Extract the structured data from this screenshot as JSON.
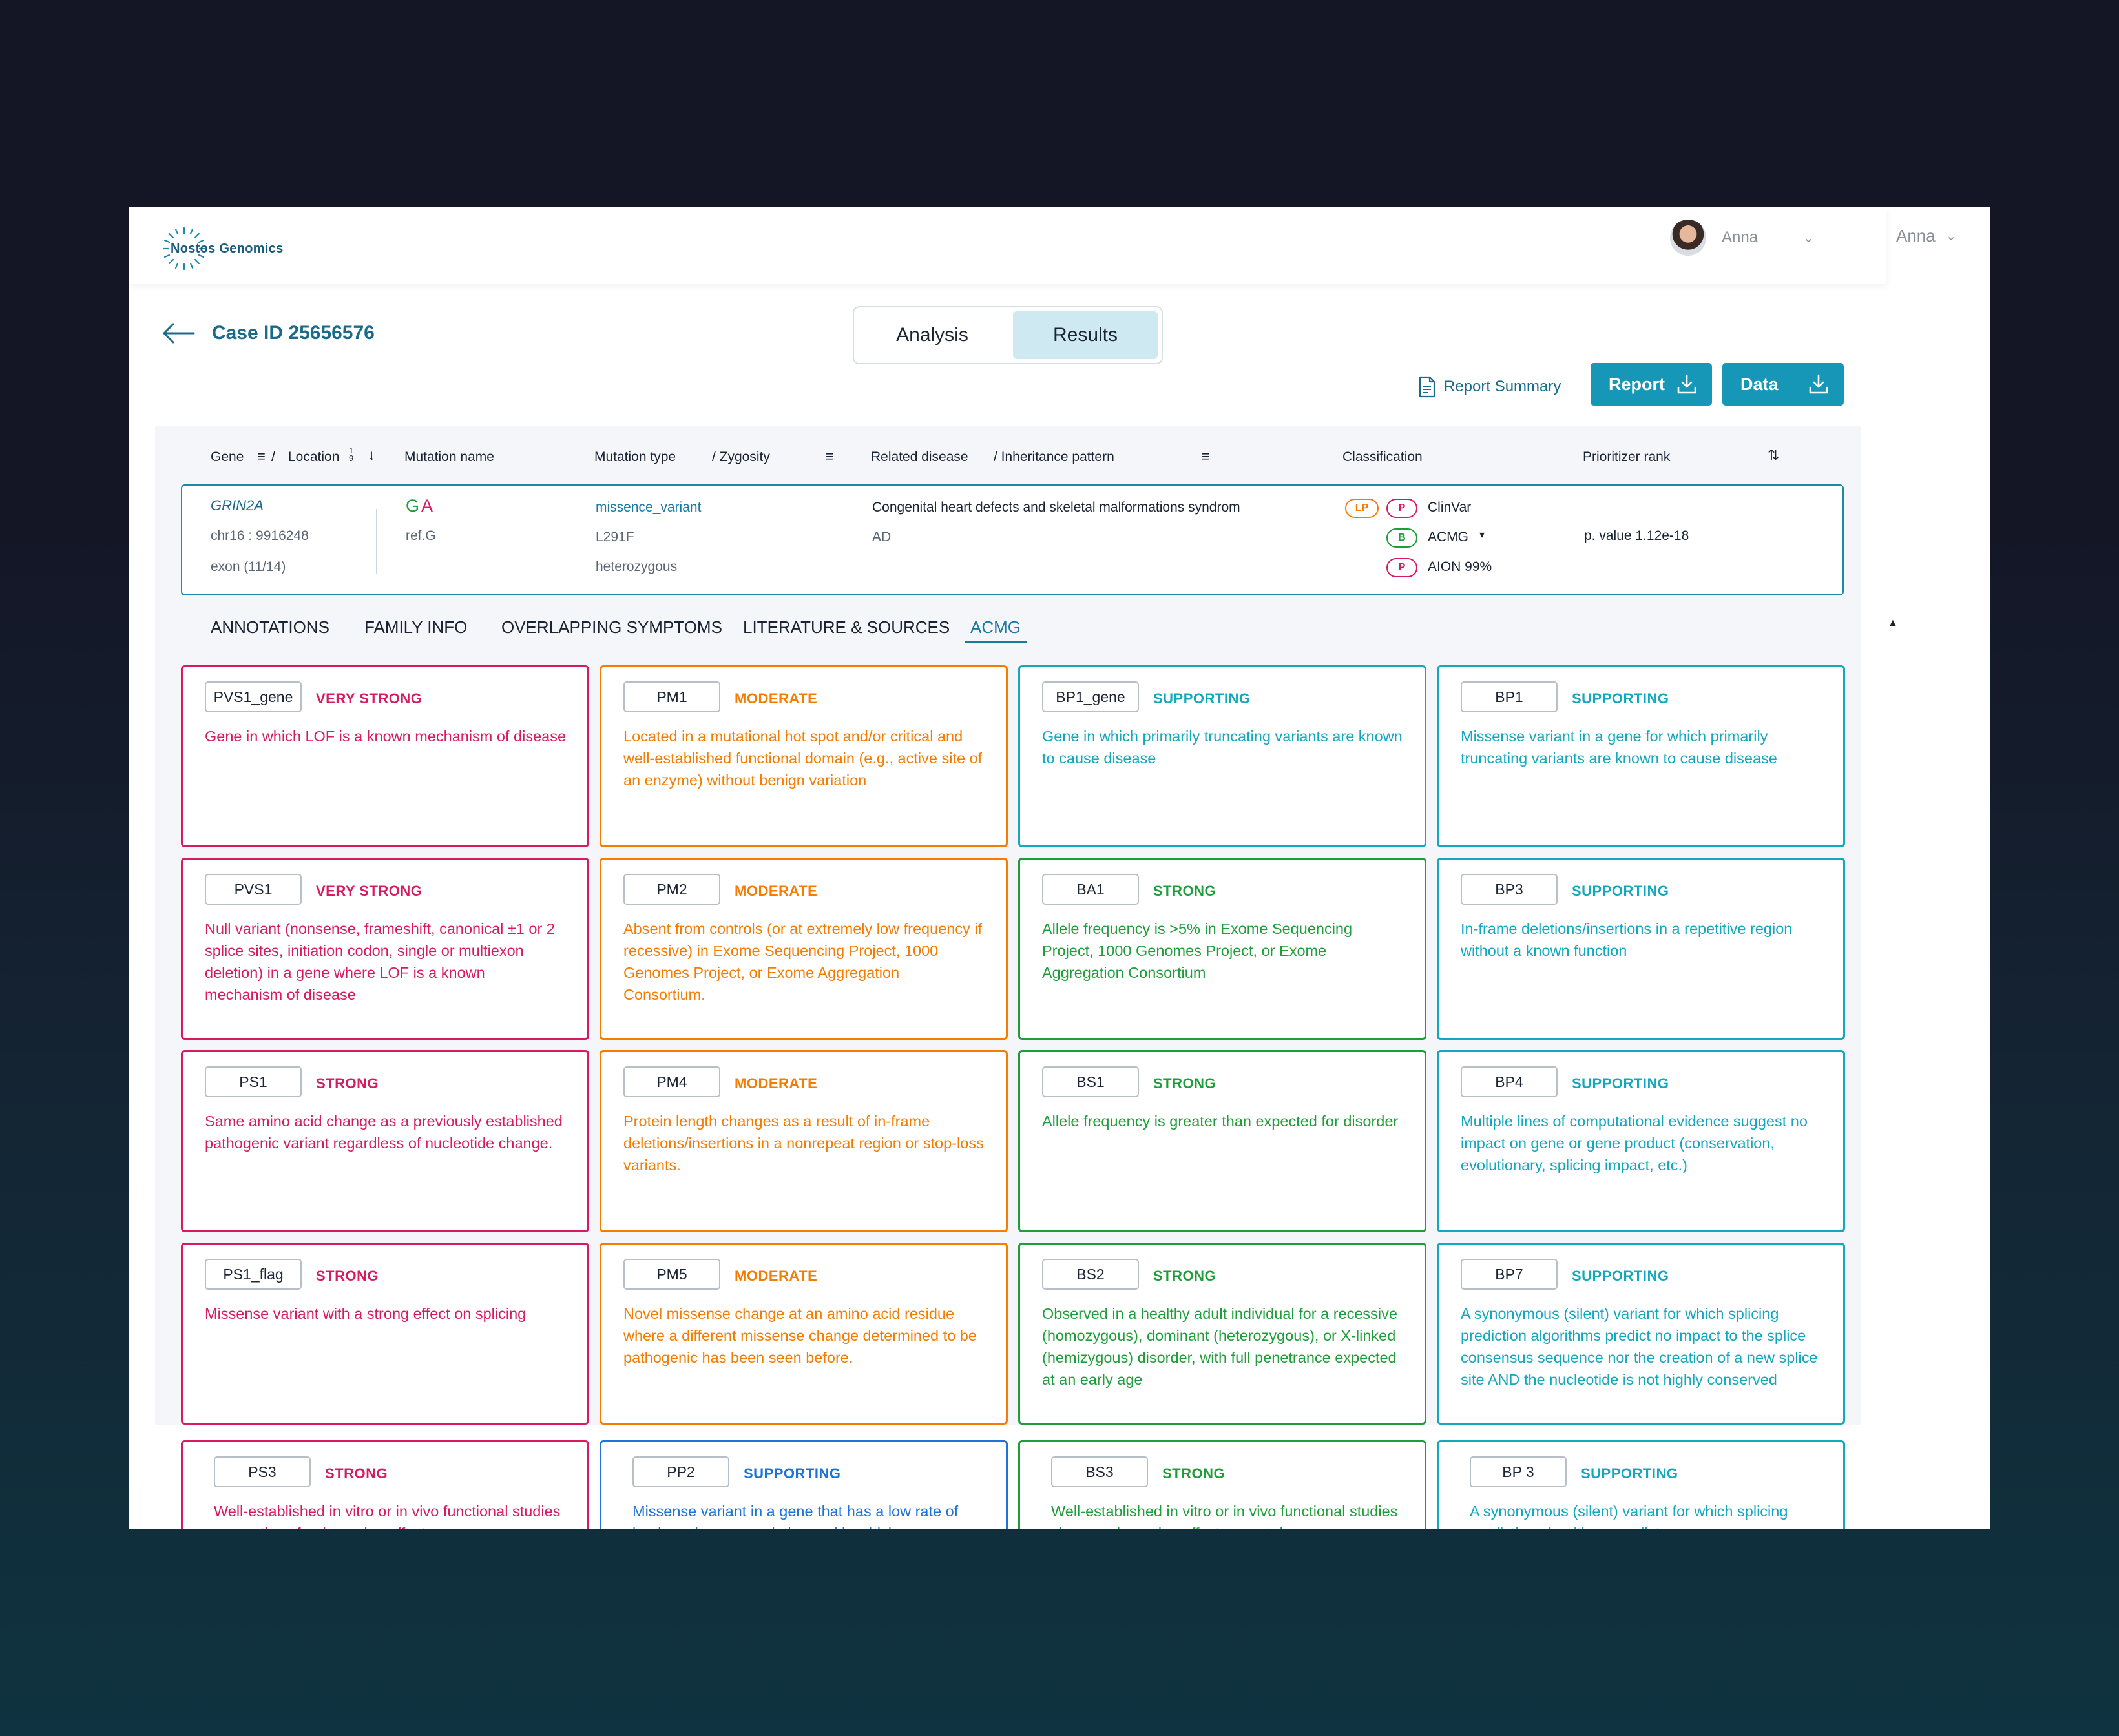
{
  "app": {
    "brand": "Nostos Genomics"
  },
  "user": {
    "name": "Anna",
    "name_secondary": "Anna"
  },
  "case": {
    "title": "Case ID 25656576"
  },
  "view_toggle": {
    "analysis": "Analysis",
    "results": "Results",
    "active": "Results"
  },
  "actions": {
    "report_summary": "Report Summary",
    "report": "Report",
    "data": "Data"
  },
  "table_headers": {
    "gene": "Gene",
    "location": "Location",
    "location_sort": "1 9",
    "mutation_name": "Mutation name",
    "mutation_type": "Mutation type",
    "zygosity": "/ Zygosity",
    "related_disease": "Related disease",
    "inheritance": "/ Inheritance pattern",
    "classification": "Classification",
    "prioritizer_rank": "Prioritizer rank",
    "slash": "/"
  },
  "variant": {
    "gene": "GRIN2A",
    "location": "chr16 : 9916248",
    "exon": "exon (11/14)",
    "ref_allele": "G",
    "alt_allele": "A",
    "ref_label": "ref.G",
    "mutation_type": "missence_variant",
    "protein_change": "L291F",
    "zygosity": "heterozygous",
    "disease": "Congenital heart defects and skeletal malformations syndrom",
    "inheritance": "AD",
    "classifications": [
      {
        "source": "ClinVar",
        "badges": [
          "LP",
          "P"
        ]
      },
      {
        "source": "ACMG",
        "badges": [
          "B"
        ],
        "dropdown": "▾"
      },
      {
        "source": "AION 99%",
        "badges": [
          "P"
        ]
      }
    ],
    "prioritizer": "p. value 1.12e-18"
  },
  "tabs": [
    "ANNOTATIONS",
    "FAMILY INFO",
    "OVERLAPPING SYMPTOMS",
    "LITERATURE & SOURCES",
    "ACMG"
  ],
  "active_tab": "ACMG",
  "colors": {
    "very_strong": "#d81b60",
    "moderate": "#f57c00",
    "strong_benign": "#1e9e3a",
    "supporting_benign": "#12a8bd",
    "supporting_path": "#1e73d8",
    "accent": "#1697b8"
  },
  "acmg_cards": [
    [
      {
        "code": "PVS1_gene",
        "level": "VERY STRONG",
        "desc": "Gene in which LOF is a known mechanism of disease"
      },
      {
        "code": "PM1",
        "level": "MODERATE",
        "desc": "Located in a mutational hot spot and/or critical and well-established functional domain (e.g., active site of an enzyme) without benign variation"
      },
      {
        "code": "BP1_gene",
        "level": "SUPPORTING",
        "desc": "Gene in which primarily truncating variants are known to cause disease"
      },
      {
        "code": "BP1",
        "level": "SUPPORTING",
        "desc": "Missense variant in a gene for which primarily truncating variants are known to cause disease"
      }
    ],
    [
      {
        "code": "PVS1",
        "level": "VERY STRONG",
        "desc": "Null variant (nonsense, frameshift, canonical ±1 or 2 splice sites, initiation codon, single or multiexon deletion) in a gene where LOF is a known mechanism of disease"
      },
      {
        "code": "PM2",
        "level": "MODERATE",
        "desc": "Absent from controls (or at extremely low frequency if recessive) in Exome Sequencing Project, 1000 Genomes Project, or Exome Aggregation Consortium."
      },
      {
        "code": "BA1",
        "level": "STRONG",
        "desc": "Allele frequency is >5% in Exome Sequencing Project, 1000 Genomes Project, or Exome Aggregation Consortium"
      },
      {
        "code": "BP3",
        "level": "SUPPORTING",
        "desc": "In-frame deletions/insertions in a repetitive region without a known function"
      }
    ],
    [
      {
        "code": "PS1",
        "level": "STRONG",
        "desc": "Same amino acid change as a previously established pathogenic variant regardless of nucleotide change."
      },
      {
        "code": "PM4",
        "level": "MODERATE",
        "desc": "Protein length changes as a result of in-frame deletions/insertions in a nonrepeat region or stop-loss variants."
      },
      {
        "code": "BS1",
        "level": "STRONG",
        "desc": "Allele frequency is greater than expected for disorder"
      },
      {
        "code": "BP4",
        "level": "SUPPORTING",
        "desc": "Multiple lines of computational evidence suggest no impact on gene or gene product (conservation, evolutionary, splicing impact, etc.)"
      }
    ],
    [
      {
        "code": "PS1_flag",
        "level": "STRONG",
        "desc": "Missense variant with a strong effect on splicing"
      },
      {
        "code": "PM5",
        "level": "MODERATE",
        "desc": "Novel missense change at an amino acid residue where a different missense change determined to be pathogenic has been seen before."
      },
      {
        "code": "BS2",
        "level": "STRONG",
        "desc": "Observed in a healthy adult individual for a recessive (homozygous), dominant (heterozygous), or X-linked (hemizygous) disorder, with full penetrance expected at an early age"
      },
      {
        "code": "BP7",
        "level": "SUPPORTING",
        "desc": "A synonymous (silent) variant for which splicing prediction algorithms predict no impact to the splice consensus sequence nor the creation of a new splice site AND the nucleotide is not highly conserved"
      }
    ],
    [
      {
        "code": "PS3",
        "level": "STRONG",
        "desc": "Well-established in vitro or in vivo functional studies supportive of a damaging effect on"
      },
      {
        "code": "PP2",
        "level": "SUPPORTING",
        "desc": "Missense variant in a gene that has a low rate of benign missense variation and in which"
      },
      {
        "code": "BS3",
        "level": "STRONG",
        "desc": "Well-established in vitro or in vivo functional studies show no damaging effect on protein"
      },
      {
        "code": "BP 3",
        "level": "SUPPORTING",
        "desc": "A synonymous (silent) variant for which splicing prediction algorithms predict no"
      }
    ]
  ]
}
